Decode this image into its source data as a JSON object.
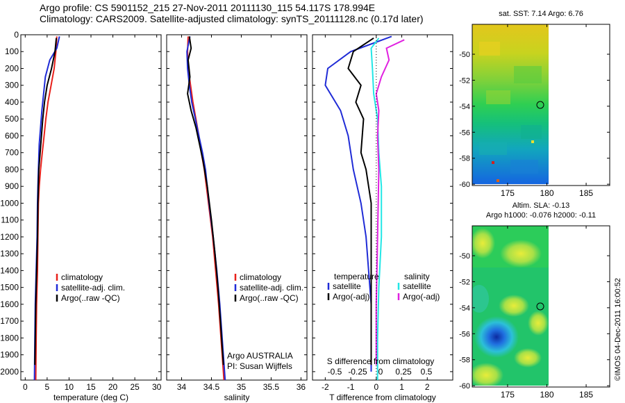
{
  "header": {
    "line1": "Argo profile: CS 5901152_215 27-Nov-2011 20111130_115 54.117S 178.994E",
    "line2": "Climatology: CARS2009. Satellite-adjusted climatology: synTS_20111128.nc (0.17d later)"
  },
  "credit": "©IMOS 04-Dec-2011 16:00:52",
  "colors": {
    "climatology": "#e8201a",
    "satellite": "#1f2bd6",
    "argo": "#000000",
    "cyan": "#22e6e6",
    "magenta": "#e020e0"
  },
  "chart_data": [
    {
      "type": "line",
      "name": "temperature-profile",
      "xlabel": "temperature (deg C)",
      "ylim": [
        2050,
        0
      ],
      "xlim": [
        -1,
        31
      ],
      "xticks": [
        "0",
        "5",
        "10",
        "15",
        "20",
        "25",
        "30"
      ],
      "yticks": [
        "0",
        "100",
        "200",
        "300",
        "400",
        "500",
        "600",
        "700",
        "800",
        "900",
        "1000",
        "1100",
        "1200",
        "1300",
        "1400",
        "1500",
        "1600",
        "1700",
        "1800",
        "1900",
        "2000"
      ],
      "legend": [
        "climatology",
        "satellite-adj. clim.",
        "Argo(..raw -QC)"
      ],
      "series": [
        {
          "name": "climatology",
          "color": "red",
          "points": [
            [
              7.2,
              10
            ],
            [
              7.0,
              100
            ],
            [
              6.6,
              200
            ],
            [
              5.9,
              300
            ],
            [
              5.2,
              400
            ],
            [
              4.7,
              500
            ],
            [
              4.3,
              600
            ],
            [
              3.9,
              700
            ],
            [
              3.5,
              800
            ],
            [
              3.2,
              900
            ],
            [
              3.0,
              1000
            ],
            [
              2.9,
              1200
            ],
            [
              2.8,
              1400
            ],
            [
              2.6,
              1600
            ],
            [
              2.5,
              1800
            ],
            [
              2.4,
              2050
            ]
          ]
        },
        {
          "name": "satellite-adj. clim.",
          "color": "blue",
          "points": [
            [
              7.8,
              10
            ],
            [
              7.2,
              80
            ],
            [
              5.6,
              150
            ],
            [
              4.6,
              250
            ],
            [
              4.2,
              350
            ],
            [
              3.8,
              450
            ],
            [
              3.5,
              550
            ],
            [
              3.2,
              650
            ],
            [
              3.0,
              800
            ],
            [
              2.9,
              900
            ],
            [
              2.8,
              1000
            ],
            [
              2.7,
              1200
            ],
            [
              2.5,
              1400
            ],
            [
              2.3,
              1600
            ],
            [
              2.2,
              1800
            ],
            [
              2.1,
              2050
            ]
          ]
        },
        {
          "name": "Argo(..raw -QC)",
          "color": "black",
          "points": [
            [
              7.1,
              20
            ],
            [
              6.8,
              100
            ],
            [
              6.0,
              200
            ],
            [
              5.0,
              300
            ],
            [
              4.4,
              400
            ],
            [
              4.0,
              500
            ],
            [
              3.7,
              600
            ],
            [
              3.4,
              700
            ],
            [
              3.1,
              800
            ],
            [
              2.9,
              1000
            ],
            [
              2.8,
              1200
            ],
            [
              2.6,
              1400
            ],
            [
              2.4,
              1600
            ],
            [
              2.3,
              1800
            ],
            [
              2.2,
              1960
            ]
          ]
        }
      ]
    },
    {
      "type": "line",
      "name": "salinity-profile",
      "xlabel": "salinity",
      "ylim": [
        2050,
        0
      ],
      "xlim": [
        33.75,
        36.1
      ],
      "xticks": [
        "34",
        "34.5",
        "35",
        "35.5",
        "36"
      ],
      "legend": [
        "climatology",
        "satellite-adj. clim.",
        "Argo(..raw -QC)"
      ],
      "annotation": [
        "Argo AUSTRALIA",
        "PI: Susan Wijffels"
      ],
      "series": [
        {
          "name": "climatology",
          "color": "red",
          "points": [
            [
              34.11,
              10
            ],
            [
              34.1,
              100
            ],
            [
              34.11,
              200
            ],
            [
              34.15,
              300
            ],
            [
              34.19,
              400
            ],
            [
              34.24,
              500
            ],
            [
              34.29,
              600
            ],
            [
              34.33,
              700
            ],
            [
              34.38,
              800
            ],
            [
              34.45,
              1000
            ],
            [
              34.52,
              1200
            ],
            [
              34.57,
              1400
            ],
            [
              34.62,
              1600
            ],
            [
              34.66,
              1800
            ],
            [
              34.71,
              2050
            ]
          ]
        },
        {
          "name": "satellite-adj. clim.",
          "color": "blue",
          "points": [
            [
              34.14,
              10
            ],
            [
              34.09,
              100
            ],
            [
              34.1,
              200
            ],
            [
              34.13,
              300
            ],
            [
              34.17,
              400
            ],
            [
              34.23,
              500
            ],
            [
              34.29,
              600
            ],
            [
              34.35,
              700
            ],
            [
              34.4,
              800
            ],
            [
              34.46,
              1000
            ],
            [
              34.53,
              1200
            ],
            [
              34.59,
              1400
            ],
            [
              34.64,
              1600
            ],
            [
              34.68,
              1800
            ],
            [
              34.73,
              2050
            ]
          ]
        },
        {
          "name": "Argo(..raw -QC)",
          "color": "black",
          "points": [
            [
              34.13,
              10
            ],
            [
              34.16,
              80
            ],
            [
              34.11,
              150
            ],
            [
              34.14,
              250
            ],
            [
              34.1,
              350
            ],
            [
              34.16,
              450
            ],
            [
              34.24,
              550
            ],
            [
              34.3,
              650
            ],
            [
              34.36,
              750
            ],
            [
              34.43,
              900
            ],
            [
              34.5,
              1100
            ],
            [
              34.56,
              1300
            ],
            [
              34.61,
              1500
            ],
            [
              34.65,
              1700
            ],
            [
              34.7,
              1960
            ]
          ]
        }
      ]
    },
    {
      "type": "line",
      "name": "difference-profile",
      "xlabel": "T difference from climatology",
      "top_label": "S difference from climatology",
      "ylim": [
        2050,
        0
      ],
      "xlim": [
        -2.5,
        3
      ],
      "xticks": [
        "-2",
        "-1",
        "0",
        "1",
        "2"
      ],
      "top_xticks": [
        "-0.5",
        "-0.25",
        "0",
        "0.25",
        "0.5"
      ],
      "legend_headers": [
        "temperature",
        "salinity"
      ],
      "legend": [
        "satellite",
        "Argo(-adj)",
        "satellite",
        "Argo(-adj)"
      ],
      "series": [
        {
          "name": "temperature satellite",
          "color": "blue",
          "points": [
            [
              0.6,
              10
            ],
            [
              -1.0,
              100
            ],
            [
              -1.9,
              200
            ],
            [
              -2.0,
              300
            ],
            [
              -1.4,
              450
            ],
            [
              -1.1,
              600
            ],
            [
              -0.9,
              800
            ],
            [
              -0.6,
              1000
            ],
            [
              -0.4,
              1200
            ],
            [
              -0.3,
              1400
            ],
            [
              -0.2,
              1600
            ],
            [
              -0.2,
              1800
            ],
            [
              -0.2,
              2000
            ]
          ]
        },
        {
          "name": "temperature Argo(-adj)",
          "color": "black",
          "points": [
            [
              -0.1,
              20
            ],
            [
              -0.9,
              100
            ],
            [
              -1.1,
              200
            ],
            [
              -0.6,
              300
            ],
            [
              -0.8,
              400
            ],
            [
              -0.5,
              500
            ],
            [
              -0.6,
              700
            ],
            [
              -0.4,
              800
            ],
            [
              -0.2,
              1000
            ],
            [
              -0.2,
              1400
            ],
            [
              -0.2,
              1960
            ]
          ]
        },
        {
          "name": "salinity satellite",
          "color": "cyan",
          "points": [
            [
              0.1,
              20
            ],
            [
              -0.2,
              80
            ],
            [
              -0.15,
              200
            ],
            [
              -0.1,
              350
            ],
            [
              0.05,
              500
            ],
            [
              0.1,
              700
            ],
            [
              0.2,
              900
            ],
            [
              0.2,
              1200
            ],
            [
              0.1,
              1500
            ],
            [
              0.05,
              1800
            ],
            [
              0.05,
              2050
            ]
          ]
        },
        {
          "name": "salinity Argo(-adj)",
          "color": "magenta",
          "points": [
            [
              1.1,
              30
            ],
            [
              0.4,
              80
            ],
            [
              0.5,
              150
            ],
            [
              0.2,
              250
            ],
            [
              0.0,
              350
            ],
            [
              0.1,
              450
            ],
            [
              0.05,
              600
            ],
            [
              0.1,
              800
            ],
            [
              0.05,
              1200
            ],
            [
              0.0,
              1600
            ],
            [
              0.0,
              1960
            ]
          ]
        }
      ]
    },
    {
      "type": "heatmap",
      "name": "sst-map",
      "title": "sat. SST: 7.14  Argo: 6.76",
      "xticks": [
        "175",
        "180",
        "185"
      ],
      "yticks": [
        "-50",
        "-52",
        "-54",
        "-56",
        "-58",
        "-60"
      ],
      "xlim": [
        170.5,
        188
      ],
      "ylim": [
        -60.1,
        -47.7
      ]
    },
    {
      "type": "heatmap",
      "name": "sla-map",
      "title_line1": "Altim. SLA: -0.13",
      "title_line2": "Argo h1000: -0.076  h2000: -0.11",
      "xticks": [
        "175",
        "180",
        "185"
      ],
      "yticks": [
        "-50",
        "-52",
        "-54",
        "-56",
        "-58",
        "-60"
      ],
      "xlim": [
        170.5,
        188
      ],
      "ylim": [
        -60.1,
        -47.7
      ]
    }
  ]
}
